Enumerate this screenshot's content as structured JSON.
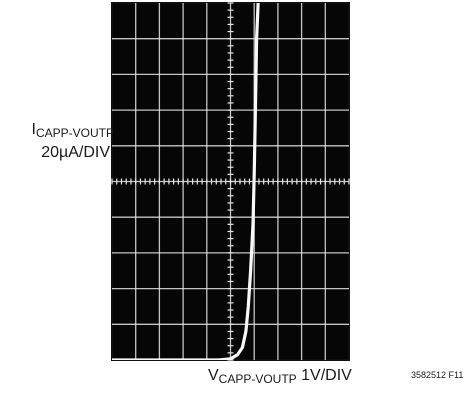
{
  "chart_data": {
    "type": "line",
    "series": [
      {
        "x": [
          0,
          0.5,
          1,
          1.5,
          2,
          2.5,
          3,
          3.5,
          4,
          4.5,
          5,
          5.3,
          5.5,
          5.65,
          5.75,
          5.85,
          5.95,
          6.0,
          6.05,
          6.1,
          6.2
        ],
        "y": [
          0,
          0,
          0,
          0,
          0,
          0,
          0,
          0,
          0,
          0,
          0.03,
          0.15,
          0.35,
          0.8,
          1.5,
          2.5,
          3.8,
          5.2,
          7,
          9,
          10.5
        ]
      }
    ],
    "xlim": [
      0,
      10
    ],
    "ylim": [
      0,
      10
    ],
    "grid": true,
    "ylabel": {
      "main": "I",
      "sub": "CAPP-VOUTP",
      "scale": "20µA/DIV"
    },
    "xlabel": {
      "main": "V",
      "sub": "CAPP-VOUTP",
      "scale": "1V/DIV"
    },
    "figure_id": "3582512 F11",
    "colors": {
      "screen": "#060606",
      "grid": "#e6e6e6",
      "trace": "#f8f8f8",
      "frame": "#101010"
    }
  }
}
